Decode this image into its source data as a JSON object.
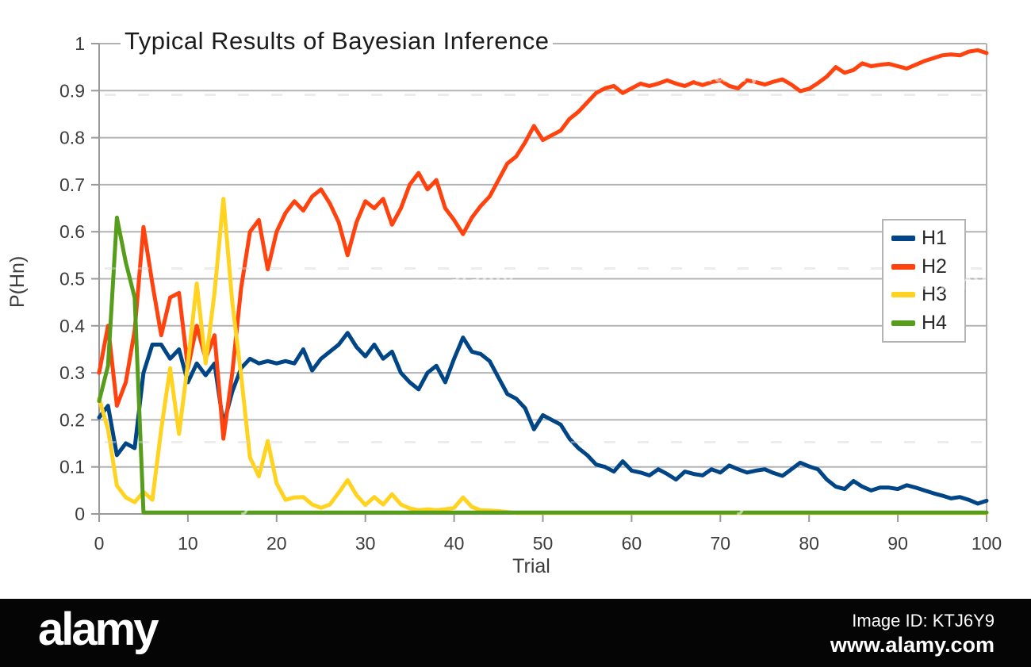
{
  "watermark": {
    "text": "alamy"
  },
  "footer": {
    "brand": "alamy",
    "image_id": "Image ID: KTJ6Y9",
    "url": "www.alamy.com"
  },
  "colors": {
    "grid": "#b3b3b3",
    "axis": "#999999",
    "tick_text": "#3d3d3d",
    "title_text": "#1b1b1b",
    "footer_bg": "#050505",
    "series_h1": "#004586",
    "series_h2": "#ff420e",
    "series_h3": "#ffd320",
    "series_h4": "#579d1c"
  },
  "chart_data": {
    "type": "line",
    "title": "Typical Results of Bayesian Inference",
    "xlabel": "Trial",
    "ylabel": "P(Hn)",
    "xlim": [
      0,
      100
    ],
    "ylim": [
      0,
      1
    ],
    "xticks": [
      0,
      10,
      20,
      30,
      40,
      50,
      60,
      70,
      80,
      90,
      100
    ],
    "yticks": [
      0,
      0.1,
      0.2,
      0.3,
      0.4,
      0.5,
      0.6,
      0.7,
      0.8,
      0.9,
      1
    ],
    "grid": "horizontal-only",
    "legend_position": "inside-right",
    "x": [
      0,
      1,
      2,
      3,
      4,
      5,
      6,
      7,
      8,
      9,
      10,
      11,
      12,
      13,
      14,
      15,
      16,
      17,
      18,
      19,
      20,
      21,
      22,
      23,
      24,
      25,
      26,
      27,
      28,
      29,
      30,
      31,
      32,
      33,
      34,
      35,
      36,
      37,
      38,
      39,
      40,
      41,
      42,
      43,
      44,
      45,
      46,
      47,
      48,
      49,
      50,
      51,
      52,
      53,
      54,
      55,
      56,
      57,
      58,
      59,
      60,
      61,
      62,
      63,
      64,
      65,
      66,
      67,
      68,
      69,
      70,
      71,
      72,
      73,
      74,
      75,
      76,
      77,
      78,
      79,
      80,
      81,
      82,
      83,
      84,
      85,
      86,
      87,
      88,
      89,
      90,
      91,
      92,
      93,
      94,
      95,
      96,
      97,
      98,
      99,
      100
    ],
    "series": [
      {
        "name": "H1",
        "color": "#004586",
        "values": [
          0.205,
          0.23,
          0.125,
          0.15,
          0.14,
          0.3,
          0.36,
          0.36,
          0.33,
          0.35,
          0.28,
          0.32,
          0.295,
          0.32,
          0.19,
          0.26,
          0.31,
          0.33,
          0.32,
          0.325,
          0.32,
          0.325,
          0.32,
          0.35,
          0.305,
          0.33,
          0.345,
          0.36,
          0.385,
          0.355,
          0.335,
          0.36,
          0.33,
          0.345,
          0.3,
          0.28,
          0.265,
          0.3,
          0.315,
          0.28,
          0.33,
          0.375,
          0.345,
          0.34,
          0.325,
          0.29,
          0.255,
          0.245,
          0.225,
          0.18,
          0.21,
          0.2,
          0.19,
          0.16,
          0.14,
          0.125,
          0.105,
          0.1,
          0.09,
          0.112,
          0.092,
          0.088,
          0.082,
          0.095,
          0.085,
          0.073,
          0.09,
          0.085,
          0.082,
          0.095,
          0.088,
          0.103,
          0.095,
          0.088,
          0.092,
          0.095,
          0.087,
          0.081,
          0.095,
          0.109,
          0.101,
          0.095,
          0.073,
          0.058,
          0.053,
          0.07,
          0.058,
          0.05,
          0.056,
          0.056,
          0.053,
          0.061,
          0.056,
          0.05,
          0.044,
          0.039,
          0.033,
          0.036,
          0.03,
          0.022,
          0.028
        ]
      },
      {
        "name": "H2",
        "color": "#ff420e",
        "values": [
          0.3,
          0.4,
          0.23,
          0.28,
          0.39,
          0.61,
          0.49,
          0.38,
          0.46,
          0.47,
          0.31,
          0.4,
          0.33,
          0.38,
          0.16,
          0.3,
          0.48,
          0.6,
          0.625,
          0.52,
          0.6,
          0.64,
          0.665,
          0.645,
          0.675,
          0.69,
          0.66,
          0.62,
          0.55,
          0.62,
          0.665,
          0.65,
          0.67,
          0.615,
          0.65,
          0.7,
          0.725,
          0.69,
          0.71,
          0.65,
          0.625,
          0.595,
          0.63,
          0.655,
          0.675,
          0.71,
          0.745,
          0.76,
          0.79,
          0.825,
          0.795,
          0.805,
          0.815,
          0.84,
          0.855,
          0.875,
          0.895,
          0.905,
          0.91,
          0.895,
          0.905,
          0.915,
          0.91,
          0.915,
          0.922,
          0.915,
          0.91,
          0.918,
          0.912,
          0.918,
          0.922,
          0.91,
          0.905,
          0.922,
          0.918,
          0.913,
          0.919,
          0.924,
          0.913,
          0.899,
          0.904,
          0.916,
          0.93,
          0.95,
          0.938,
          0.944,
          0.958,
          0.952,
          0.955,
          0.957,
          0.952,
          0.947,
          0.955,
          0.963,
          0.969,
          0.975,
          0.977,
          0.975,
          0.983,
          0.986,
          0.98
        ]
      },
      {
        "name": "H3",
        "color": "#ffd320",
        "values": [
          0.245,
          0.18,
          0.06,
          0.035,
          0.025,
          0.047,
          0.03,
          0.18,
          0.31,
          0.17,
          0.32,
          0.49,
          0.32,
          0.47,
          0.67,
          0.45,
          0.295,
          0.12,
          0.08,
          0.155,
          0.065,
          0.03,
          0.035,
          0.036,
          0.02,
          0.013,
          0.02,
          0.045,
          0.072,
          0.04,
          0.019,
          0.036,
          0.02,
          0.042,
          0.02,
          0.012,
          0.008,
          0.01,
          0.008,
          0.01,
          0.013,
          0.035,
          0.015,
          0.008,
          0.007,
          0.006,
          0.004,
          0.002,
          0.002,
          0.002,
          0.002,
          0.002,
          0.002,
          0.002,
          0.002,
          0.002,
          0.002,
          0.002,
          0.002,
          0.002,
          0.002,
          0.002,
          0.002,
          0.002,
          0.002,
          0.002,
          0.002,
          0.002,
          0.002,
          0.002,
          0.002,
          0.002,
          0.002,
          0.002,
          0.002,
          0.002,
          0.002,
          0.002,
          0.002,
          0.002,
          0.002,
          0.002,
          0.002,
          0.002,
          0.002,
          0.002,
          0.002,
          0.002,
          0.002,
          0.002,
          0.002,
          0.002,
          0.002,
          0.002,
          0.002,
          0.002,
          0.002,
          0.002,
          0.002,
          0.002,
          0.002
        ]
      },
      {
        "name": "H4",
        "color": "#579d1c",
        "values": [
          0.24,
          0.315,
          0.63,
          0.535,
          0.46,
          0.003,
          0.003,
          0.003,
          0.003,
          0.003,
          0.003,
          0.003,
          0.003,
          0.003,
          0.003,
          0.003,
          0.003,
          0.003,
          0.003,
          0.003,
          0.003,
          0.003,
          0.003,
          0.003,
          0.003,
          0.003,
          0.003,
          0.003,
          0.003,
          0.003,
          0.003,
          0.003,
          0.003,
          0.003,
          0.003,
          0.003,
          0.003,
          0.003,
          0.003,
          0.003,
          0.003,
          0.003,
          0.003,
          0.003,
          0.003,
          0.003,
          0.003,
          0.003,
          0.003,
          0.003,
          0.003,
          0.003,
          0.003,
          0.003,
          0.003,
          0.003,
          0.003,
          0.003,
          0.003,
          0.003,
          0.003,
          0.003,
          0.003,
          0.003,
          0.003,
          0.003,
          0.003,
          0.003,
          0.003,
          0.003,
          0.003,
          0.003,
          0.003,
          0.003,
          0.003,
          0.003,
          0.003,
          0.003,
          0.003,
          0.003,
          0.003,
          0.003,
          0.003,
          0.003,
          0.003,
          0.003,
          0.003,
          0.003,
          0.003,
          0.003,
          0.003,
          0.003,
          0.003,
          0.003,
          0.003,
          0.003,
          0.003,
          0.003,
          0.003,
          0.003,
          0.003
        ]
      }
    ]
  }
}
